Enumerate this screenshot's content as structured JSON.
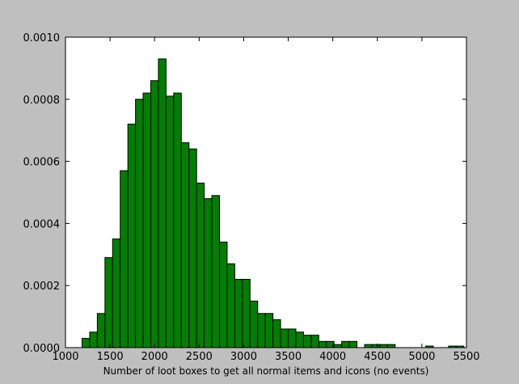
{
  "chart_data": {
    "type": "bar",
    "title": "",
    "xlabel": "Number of loot boxes to get all normal items and icons (no events)",
    "ylabel": "",
    "xlim": [
      1000,
      5500
    ],
    "ylim": [
      0,
      0.001
    ],
    "x_ticks": [
      1000,
      1500,
      2000,
      2500,
      3000,
      3500,
      4000,
      4500,
      5000,
      5500
    ],
    "x_tick_labels": [
      "1000",
      "1500",
      "2000",
      "2500",
      "3000",
      "3500",
      "4000",
      "4500",
      "5000",
      "5500"
    ],
    "y_ticks": [
      0,
      0.0002,
      0.0004,
      0.0006,
      0.0008,
      0.001
    ],
    "y_tick_labels": [
      "0.0000",
      "0.0002",
      "0.0004",
      "0.0006",
      "0.0008",
      "0.0010"
    ],
    "grid": false,
    "bar_color": "#007f00",
    "edge_color": "#000000",
    "bin_width": 85.7,
    "bin_starts": [
      1186,
      1271.7,
      1357.4,
      1443.1,
      1528.8,
      1614.5,
      1700.2,
      1785.9,
      1871.6,
      1957.3,
      2043,
      2128.7,
      2214.4,
      2300.1,
      2385.8,
      2471.5,
      2557.2,
      2642.9,
      2728.6,
      2814.3,
      2900,
      2985.7,
      3071.4,
      3157.1,
      3242.8,
      3328.5,
      3414.2,
      3499.9,
      3585.6,
      3671.3,
      3757,
      3842.7,
      3928.4,
      4014.1,
      4099.8,
      4185.5,
      4271.2,
      4356.9,
      4442.6,
      4528.3,
      4614,
      4699.7,
      4785.4,
      4871.1,
      4956.8,
      5042.5,
      5128.2,
      5213.9,
      5299.6,
      5385.3
    ],
    "values": [
      3e-05,
      5e-05,
      0.00011,
      0.00029,
      0.00035,
      0.00057,
      0.00072,
      0.0008,
      0.00082,
      0.00086,
      0.00093,
      0.00081,
      0.00082,
      0.00066,
      0.00064,
      0.00053,
      0.00048,
      0.00049,
      0.00034,
      0.00027,
      0.00022,
      0.00022,
      0.00015,
      0.00011,
      0.00011,
      9e-05,
      6e-05,
      6e-05,
      5e-05,
      4e-05,
      4e-05,
      2e-05,
      2e-05,
      1e-05,
      2e-05,
      2e-05,
      0.0,
      1e-05,
      1e-05,
      1e-05,
      1e-05,
      0.0,
      0.0,
      0.0,
      0.0,
      5e-06,
      0.0,
      0.0,
      5e-06,
      5e-06
    ]
  }
}
